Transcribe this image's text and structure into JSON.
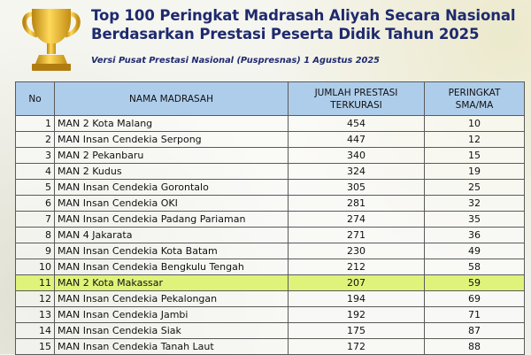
{
  "title": "Top 100 Peringkat Madrasah Aliyah Secara Nasional Berdasarkan Prestasi Peserta Didik Tahun 2025",
  "subtitle": "Versi Pusat Prestasi Nasional (Puspresnas) 1 Agustus 2025",
  "icons": {
    "trophy": "trophy-icon",
    "trophy_color": "#e8b31b"
  },
  "colors": {
    "header_bg": "#aecdea",
    "highlight_row": "#dff27a",
    "title_text": "#1e2a6e"
  },
  "table": {
    "headers": {
      "no": "No",
      "name": "NAMA MADRASAH",
      "count_line1": "JUMLAH PRESTASI",
      "count_line2": "TERKURASI",
      "rank_line1": "PERINGKAT",
      "rank_line2": "SMA/MA"
    },
    "highlight_no": "11",
    "rows": [
      {
        "no": "1",
        "name": "MAN 2 Kota Malang",
        "count": "454",
        "rank": "10"
      },
      {
        "no": "2",
        "name": "MAN Insan Cendekia Serpong",
        "count": "447",
        "rank": "12"
      },
      {
        "no": "3",
        "name": "MAN 2 Pekanbaru",
        "count": "340",
        "rank": "15"
      },
      {
        "no": "4",
        "name": "MAN 2 Kudus",
        "count": "324",
        "rank": "19"
      },
      {
        "no": "5",
        "name": "MAN Insan Cendekia Gorontalo",
        "count": "305",
        "rank": "25"
      },
      {
        "no": "6",
        "name": "MAN Insan Cendekia OKI",
        "count": "281",
        "rank": "32"
      },
      {
        "no": "7",
        "name": "MAN Insan Cendekia Padang Pariaman",
        "count": "274",
        "rank": "35"
      },
      {
        "no": "8",
        "name": "MAN 4 Jakarata",
        "count": "271",
        "rank": "36"
      },
      {
        "no": "9",
        "name": "MAN Insan Cendekia Kota Batam",
        "count": "230",
        "rank": "49"
      },
      {
        "no": "10",
        "name": "MAN Insan Cendekia Bengkulu Tengah",
        "count": "212",
        "rank": "58"
      },
      {
        "no": "11",
        "name": "MAN 2 Kota Makassar",
        "count": "207",
        "rank": "59"
      },
      {
        "no": "12",
        "name": "MAN Insan Cendekia Pekalongan",
        "count": "194",
        "rank": "69"
      },
      {
        "no": "13",
        "name": "MAN Insan Cendekia Jambi",
        "count": "192",
        "rank": "71"
      },
      {
        "no": "14",
        "name": "MAN Insan Cendekia Siak",
        "count": "175",
        "rank": "87"
      },
      {
        "no": "15",
        "name": "MAN Insan Cendekia Tanah Laut",
        "count": "172",
        "rank": "88"
      }
    ]
  }
}
